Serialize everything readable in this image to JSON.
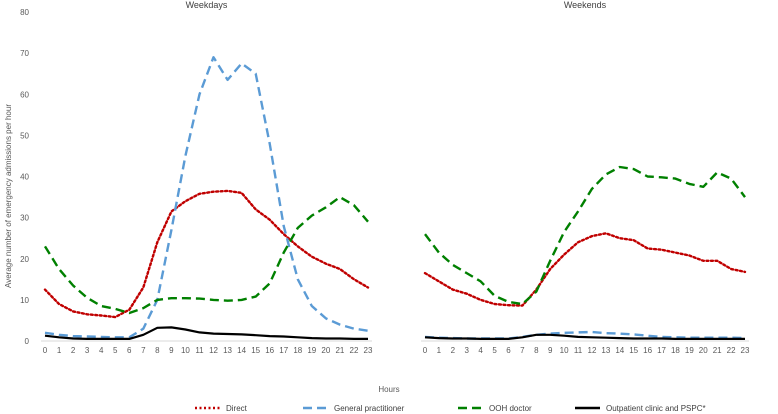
{
  "chart_data": [
    {
      "type": "line",
      "title": "Weekdays",
      "x": [
        0,
        1,
        2,
        3,
        4,
        5,
        6,
        7,
        8,
        9,
        10,
        11,
        12,
        13,
        14,
        15,
        16,
        17,
        18,
        19,
        20,
        21,
        22,
        23
      ],
      "ylim": [
        0,
        80
      ],
      "yticks": [
        0,
        10,
        20,
        30,
        40,
        50,
        60,
        70,
        80
      ],
      "series": [
        {
          "name": "Direct",
          "color": "#c00000",
          "style": "dotted",
          "values": [
            12.5,
            9.0,
            7.2,
            6.5,
            6.2,
            5.8,
            7.6,
            13.0,
            24.0,
            31.5,
            34.0,
            35.8,
            36.3,
            36.5,
            36.0,
            32.0,
            29.5,
            26.0,
            23.0,
            20.5,
            18.8,
            17.5,
            15.0,
            13.0
          ]
        },
        {
          "name": "General practitioner",
          "color": "#5b9bd5",
          "style": "dashed",
          "values": [
            2.0,
            1.5,
            1.2,
            1.1,
            1.0,
            0.9,
            0.9,
            3.0,
            10.0,
            27.0,
            45.0,
            60.0,
            69.0,
            63.5,
            67.5,
            65.0,
            48.0,
            28.0,
            15.0,
            8.5,
            5.5,
            4.0,
            3.0,
            2.5
          ]
        },
        {
          "name": "OOH doctor",
          "color": "#008000",
          "style": "dashed",
          "values": [
            23.0,
            17.5,
            13.5,
            10.5,
            8.5,
            7.8,
            6.8,
            8.0,
            10.0,
            10.4,
            10.4,
            10.3,
            10.0,
            9.8,
            10.0,
            10.8,
            14.0,
            21.5,
            27.5,
            30.5,
            32.5,
            35.0,
            33.0,
            29.0
          ]
        },
        {
          "name": "Outpatient clinic and PSPC*",
          "color": "#000000",
          "style": "solid",
          "values": [
            1.3,
            0.9,
            0.6,
            0.5,
            0.5,
            0.5,
            0.5,
            1.5,
            3.2,
            3.3,
            2.8,
            2.1,
            1.8,
            1.7,
            1.6,
            1.4,
            1.2,
            1.1,
            0.9,
            0.7,
            0.6,
            0.6,
            0.5,
            0.5
          ]
        }
      ]
    },
    {
      "type": "line",
      "title": "Weekends",
      "x": [
        0,
        1,
        2,
        3,
        4,
        5,
        6,
        7,
        8,
        9,
        10,
        11,
        12,
        13,
        14,
        15,
        16,
        17,
        18,
        19,
        20,
        21,
        22,
        23
      ],
      "ylim": [
        0,
        80
      ],
      "series": [
        {
          "name": "Direct",
          "color": "#c00000",
          "style": "dotted",
          "values": [
            16.5,
            14.5,
            12.5,
            11.5,
            10.0,
            9.0,
            8.7,
            8.6,
            12.5,
            17.5,
            21.0,
            24.0,
            25.5,
            26.2,
            25.0,
            24.5,
            22.5,
            22.2,
            21.5,
            20.8,
            19.5,
            19.5,
            17.5,
            16.8
          ]
        },
        {
          "name": "General practitioner",
          "color": "#5b9bd5",
          "style": "dashed",
          "values": [
            1.0,
            0.8,
            0.7,
            0.6,
            0.6,
            0.6,
            0.6,
            1.0,
            1.5,
            1.8,
            2.0,
            2.1,
            2.2,
            1.9,
            1.8,
            1.6,
            1.3,
            1.0,
            0.9,
            0.8,
            0.8,
            0.8,
            0.8,
            0.7
          ]
        },
        {
          "name": "OOH doctor",
          "color": "#008000",
          "style": "dashed",
          "values": [
            26.0,
            21.5,
            18.5,
            16.5,
            14.5,
            11.0,
            9.5,
            9.0,
            12.0,
            19.5,
            26.5,
            31.5,
            37.0,
            40.5,
            42.3,
            41.8,
            40.0,
            39.8,
            39.5,
            38.2,
            37.5,
            41.0,
            39.5,
            35.0
          ]
        },
        {
          "name": "Outpatient clinic and PSPC*",
          "color": "#000000",
          "style": "solid",
          "values": [
            0.9,
            0.7,
            0.6,
            0.6,
            0.5,
            0.5,
            0.5,
            0.9,
            1.5,
            1.5,
            1.3,
            1.0,
            0.9,
            0.8,
            0.7,
            0.6,
            0.6,
            0.6,
            0.5,
            0.5,
            0.5,
            0.5,
            0.5,
            0.5
          ]
        }
      ]
    }
  ],
  "axis": {
    "ylabel": "Average number of emergency admissions per hour",
    "xlabel": "Hours"
  },
  "legend": [
    {
      "label": "Direct",
      "color": "#c00000",
      "style": "dotted"
    },
    {
      "label": "General practitioner",
      "color": "#5b9bd5",
      "style": "dashed"
    },
    {
      "label": "OOH doctor",
      "color": "#008000",
      "style": "dashed"
    },
    {
      "label": "Outpatient clinic and PSPC*",
      "color": "#000000",
      "style": "solid"
    }
  ]
}
